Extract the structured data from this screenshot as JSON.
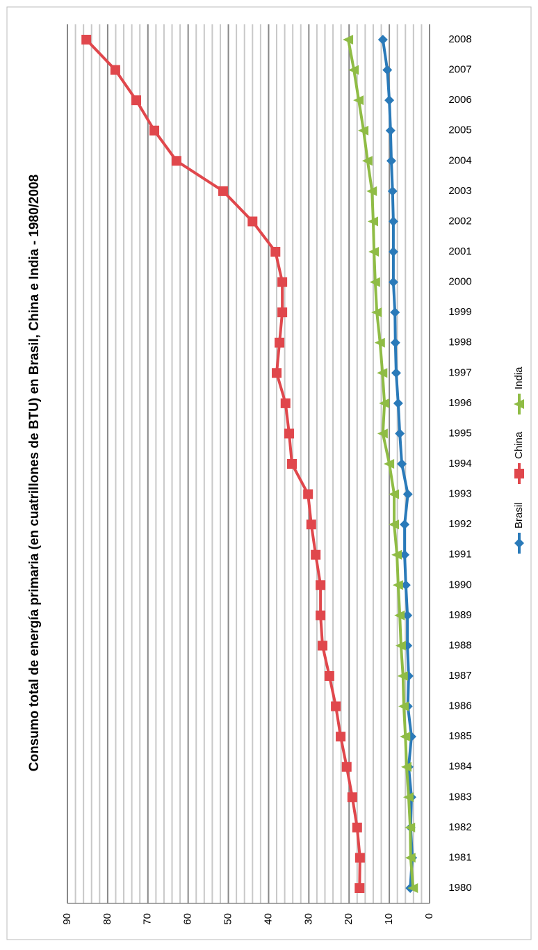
{
  "chart_data": {
    "type": "line",
    "title": "Consumo total de energía primaria (en cuatrillones de BTU) en Brasil, China e India - 1980/2008",
    "categories": [
      "1980",
      "1981",
      "1982",
      "1983",
      "1984",
      "1985",
      "1986",
      "1987",
      "1988",
      "1989",
      "1990",
      "1991",
      "1992",
      "1993",
      "1994",
      "1995",
      "1996",
      "1997",
      "1998",
      "1999",
      "2000",
      "2001",
      "2002",
      "2003",
      "2004",
      "2005",
      "2006",
      "2007",
      "2008"
    ],
    "series": [
      {
        "name": "Brasil",
        "color": "#2a7ab9",
        "marker": "diamond",
        "values": [
          4.8,
          4.3,
          4.7,
          4.5,
          5.2,
          4.5,
          5.4,
          5.2,
          5.5,
          5.5,
          5.9,
          6.2,
          6.2,
          5.4,
          6.9,
          7.4,
          7.8,
          8.3,
          8.5,
          8.6,
          9.0,
          9.0,
          9.0,
          9.2,
          9.5,
          9.7,
          10.0,
          10.5,
          11.6
        ]
      },
      {
        "name": "China",
        "color": "#e0474c",
        "marker": "square",
        "values": [
          17.4,
          17.3,
          18.0,
          19.2,
          20.6,
          22.1,
          23.3,
          24.9,
          26.6,
          27.1,
          27.1,
          28.3,
          29.4,
          30.2,
          34.2,
          34.9,
          35.8,
          38.0,
          37.3,
          36.6,
          36.6,
          38.3,
          44.0,
          51.3,
          62.9,
          68.4,
          72.9,
          78.1,
          85.3
        ]
      },
      {
        "name": "India",
        "color": "#8fbc45",
        "marker": "triangle",
        "values": [
          4.1,
          4.7,
          4.8,
          5.2,
          5.7,
          6.0,
          6.4,
          6.6,
          7.1,
          7.4,
          7.8,
          8.1,
          8.8,
          8.8,
          10.0,
          11.6,
          11.2,
          11.7,
          12.3,
          13.1,
          13.5,
          13.8,
          14.0,
          14.3,
          15.4,
          16.4,
          17.6,
          18.8,
          20.2
        ]
      }
    ],
    "ylim": [
      0,
      90
    ],
    "yticks": [
      0,
      10,
      20,
      30,
      40,
      50,
      60,
      70,
      80,
      90
    ],
    "grid": true,
    "legend": "bottom"
  }
}
